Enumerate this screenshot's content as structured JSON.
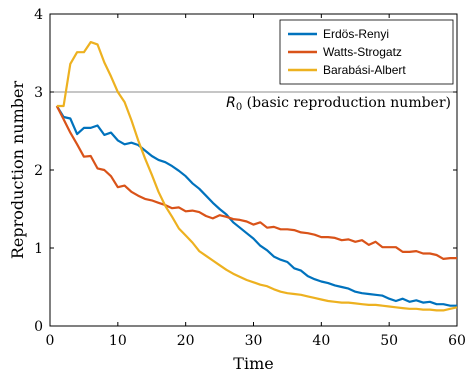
{
  "chart_data": {
    "type": "line",
    "xlabel": "Time",
    "ylabel": "Reproduction number",
    "xlim": [
      0,
      60
    ],
    "ylim": [
      0,
      4
    ],
    "xticks": [
      0,
      10,
      20,
      30,
      40,
      50,
      60
    ],
    "yticks": [
      0,
      1,
      2,
      3,
      4
    ],
    "grid": false,
    "legend_position": "top-right",
    "reference_line": {
      "y": 3,
      "label_symbol": "R",
      "label_subscript": "0",
      "label_text": " (basic reproduction number)"
    },
    "series": [
      {
        "name": "Erdös-Renyi",
        "color": "#0072BD",
        "x": [
          1,
          2,
          3,
          4,
          5,
          6,
          7,
          8,
          9,
          10,
          11,
          12,
          13,
          14,
          15,
          16,
          17,
          18,
          19,
          20,
          21,
          22,
          23,
          24,
          25,
          26,
          27,
          28,
          29,
          30,
          31,
          32,
          33,
          34,
          35,
          36,
          37,
          38,
          39,
          40,
          41,
          42,
          43,
          44,
          45,
          46,
          47,
          48,
          49,
          50,
          51,
          52,
          53,
          54,
          55,
          56,
          57,
          58,
          59,
          60
        ],
        "y": [
          2.82,
          2.68,
          2.66,
          2.46,
          2.54,
          2.54,
          2.57,
          2.45,
          2.48,
          2.38,
          2.33,
          2.35,
          2.32,
          2.25,
          2.18,
          2.13,
          2.1,
          2.05,
          1.99,
          1.92,
          1.83,
          1.76,
          1.67,
          1.58,
          1.5,
          1.43,
          1.33,
          1.26,
          1.19,
          1.12,
          1.03,
          0.97,
          0.89,
          0.85,
          0.82,
          0.74,
          0.71,
          0.64,
          0.6,
          0.57,
          0.55,
          0.52,
          0.5,
          0.48,
          0.44,
          0.42,
          0.41,
          0.4,
          0.39,
          0.35,
          0.32,
          0.35,
          0.31,
          0.33,
          0.3,
          0.31,
          0.28,
          0.28,
          0.26,
          0.26
        ]
      },
      {
        "name": "Watts-Strogatz",
        "color": "#D95319",
        "x": [
          1,
          2,
          3,
          4,
          5,
          6,
          7,
          8,
          9,
          10,
          11,
          12,
          13,
          14,
          15,
          16,
          17,
          18,
          19,
          20,
          21,
          22,
          23,
          24,
          25,
          26,
          27,
          28,
          29,
          30,
          31,
          32,
          33,
          34,
          35,
          36,
          37,
          38,
          39,
          40,
          41,
          42,
          43,
          44,
          45,
          46,
          47,
          48,
          49,
          50,
          51,
          52,
          53,
          54,
          55,
          56,
          57,
          58,
          59,
          60
        ],
        "y": [
          2.82,
          2.65,
          2.48,
          2.33,
          2.17,
          2.18,
          2.02,
          2.0,
          1.92,
          1.78,
          1.8,
          1.72,
          1.67,
          1.63,
          1.61,
          1.58,
          1.55,
          1.51,
          1.52,
          1.47,
          1.48,
          1.46,
          1.41,
          1.38,
          1.42,
          1.4,
          1.37,
          1.36,
          1.34,
          1.3,
          1.33,
          1.26,
          1.27,
          1.24,
          1.24,
          1.23,
          1.2,
          1.19,
          1.17,
          1.14,
          1.14,
          1.13,
          1.1,
          1.11,
          1.08,
          1.1,
          1.04,
          1.08,
          1.01,
          1.01,
          1.01,
          0.95,
          0.95,
          0.96,
          0.93,
          0.93,
          0.91,
          0.86,
          0.87,
          0.87
        ]
      },
      {
        "name": "Barabási-Albert",
        "color": "#EDB120",
        "x": [
          1,
          2,
          3,
          4,
          5,
          6,
          7,
          8,
          9,
          10,
          11,
          12,
          13,
          14,
          15,
          16,
          17,
          18,
          19,
          20,
          21,
          22,
          23,
          24,
          25,
          26,
          27,
          28,
          29,
          30,
          31,
          32,
          33,
          34,
          35,
          36,
          37,
          38,
          39,
          40,
          41,
          42,
          43,
          44,
          45,
          46,
          47,
          48,
          49,
          50,
          51,
          52,
          53,
          54,
          55,
          56,
          57,
          58,
          59,
          60
        ],
        "y": [
          2.82,
          2.82,
          3.36,
          3.51,
          3.51,
          3.64,
          3.61,
          3.38,
          3.2,
          3.0,
          2.87,
          2.64,
          2.38,
          2.15,
          1.94,
          1.72,
          1.54,
          1.4,
          1.25,
          1.16,
          1.07,
          0.96,
          0.9,
          0.84,
          0.78,
          0.72,
          0.67,
          0.63,
          0.59,
          0.56,
          0.53,
          0.51,
          0.47,
          0.44,
          0.42,
          0.41,
          0.4,
          0.38,
          0.36,
          0.34,
          0.32,
          0.31,
          0.3,
          0.3,
          0.29,
          0.28,
          0.27,
          0.27,
          0.26,
          0.25,
          0.24,
          0.23,
          0.22,
          0.22,
          0.21,
          0.21,
          0.2,
          0.2,
          0.22,
          0.24
        ]
      }
    ]
  }
}
